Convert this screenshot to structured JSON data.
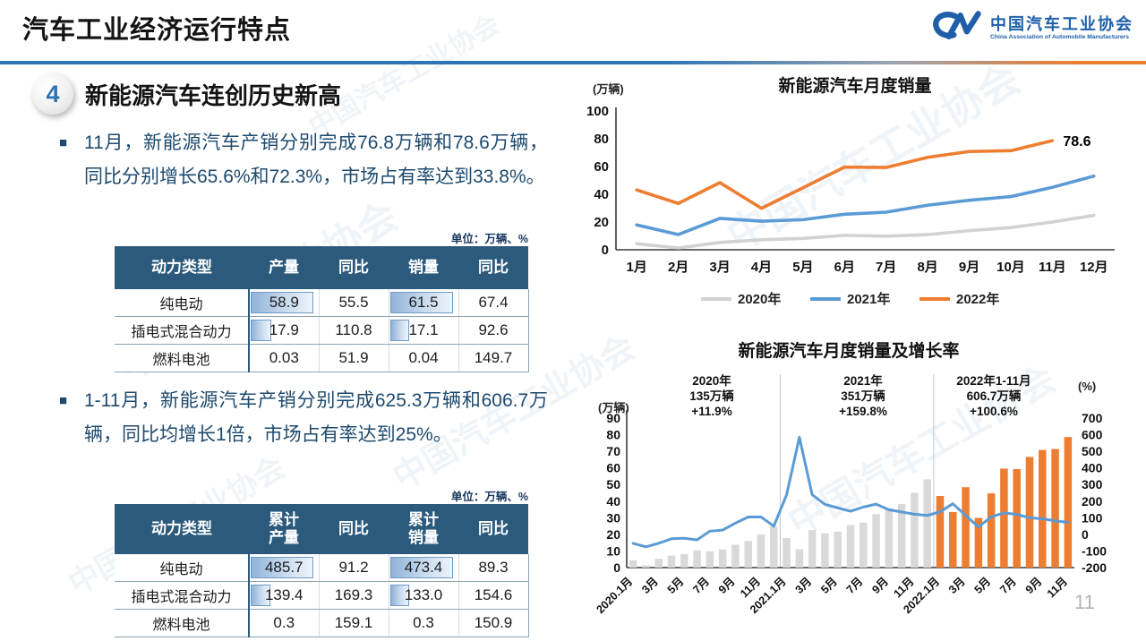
{
  "header": {
    "title": "汽车工业经济运行特点",
    "logo": {
      "mark": "CM",
      "name_cn": "中国汽车工业协会",
      "name_en": "China Association of Automobile Manufacturers"
    }
  },
  "section": {
    "number": "4",
    "heading": "新能源汽车连创历史新高"
  },
  "bullets": [
    {
      "text": "11月，新能源汽车产销分别完成76.8万辆和78.6万辆，同比分别增长65.6%和72.3%，市场占有率达到33.8%。"
    },
    {
      "text": "1-11月，新能源汽车产销分别完成625.3万辆和606.7万辆，同比均增长1倍，市场占有率达到25%。"
    }
  ],
  "tables": [
    {
      "unit_note": "单位：万辆、%",
      "headers": [
        "动力类型",
        "产量",
        "同比",
        "销量",
        "同比"
      ],
      "rows": [
        [
          "纯电动",
          "58.9",
          "55.5",
          "61.5",
          "67.4"
        ],
        [
          "插电式混合动力",
          "17.9",
          "110.8",
          "17.1",
          "92.6"
        ],
        [
          "燃料电池",
          "0.03",
          "51.9",
          "0.04",
          "149.7"
        ]
      ],
      "databar_columns": [
        1,
        3
      ]
    },
    {
      "unit_note": "单位：万辆、%",
      "headers": [
        "动力类型",
        "累计产量",
        "同比",
        "累计销量",
        "同比"
      ],
      "rows": [
        [
          "纯电动",
          "485.7",
          "91.2",
          "473.4",
          "89.3"
        ],
        [
          "插电式混合动力",
          "139.4",
          "169.3",
          "133.0",
          "154.6"
        ],
        [
          "燃料电池",
          "0.3",
          "159.1",
          "0.3",
          "150.9"
        ]
      ],
      "databar_columns": [
        1,
        3
      ]
    }
  ],
  "chart_data": [
    {
      "type": "line",
      "title": "新能源汽车月度销量",
      "unit_label": "(万辆)",
      "categories": [
        "1月",
        "2月",
        "3月",
        "4月",
        "5月",
        "6月",
        "7月",
        "8月",
        "9月",
        "10月",
        "11月",
        "12月"
      ],
      "ylim": [
        0,
        100
      ],
      "yticks": [
        0,
        20,
        40,
        60,
        80,
        100
      ],
      "grid": false,
      "legend_position": "bottom",
      "series": [
        {
          "name": "2020年",
          "color": "#d2d2d2",
          "values": [
            4.4,
            1.3,
            5.3,
            7.2,
            8.2,
            10.4,
            9.8,
            10.9,
            13.8,
            16.0,
            20.0,
            24.8
          ]
        },
        {
          "name": "2021年",
          "color": "#5b9bd5",
          "values": [
            17.9,
            11.0,
            22.6,
            20.6,
            21.7,
            25.6,
            27.1,
            32.1,
            35.7,
            38.3,
            45.0,
            53.1
          ]
        },
        {
          "name": "2022年",
          "color": "#ed7d31",
          "values": [
            43.1,
            33.4,
            48.4,
            29.9,
            44.7,
            59.6,
            59.3,
            66.6,
            70.8,
            71.4,
            78.6
          ]
        }
      ],
      "end_label": {
        "text": "78.6",
        "series_index": 2
      }
    },
    {
      "type": "bar+line",
      "title": "新能源汽车月度销量及增长率",
      "left_axis": {
        "unit": "(万辆)",
        "lim": [
          0,
          90
        ],
        "ticks": [
          0,
          10,
          20,
          30,
          40,
          50,
          60,
          70,
          80,
          90
        ]
      },
      "right_axis": {
        "unit": "(%)",
        "lim": [
          -200,
          700
        ],
        "ticks": [
          700,
          600,
          500,
          400,
          300,
          200,
          100,
          0,
          -100,
          -200
        ]
      },
      "x_tick_labels": [
        "2020.1月",
        "3月",
        "5月",
        "7月",
        "9月",
        "11月",
        "2021.1月",
        "3月",
        "5月",
        "7月",
        "9月",
        "11月",
        "2022.1月",
        "3月",
        "5月",
        "7月",
        "9月",
        "11月"
      ],
      "bars": {
        "values": [
          4.4,
          1.3,
          5.3,
          7.2,
          8.2,
          10.4,
          9.8,
          10.9,
          13.8,
          16.0,
          20.0,
          24.8,
          17.9,
          11.0,
          22.6,
          20.6,
          21.7,
          25.6,
          27.1,
          32.1,
          35.7,
          38.3,
          45.0,
          53.1,
          43.1,
          33.4,
          48.4,
          29.9,
          44.7,
          59.6,
          59.3,
          66.6,
          70.8,
          71.4,
          78.6
        ],
        "split_index": 24,
        "color_2020_2021": "#d9d9d9",
        "color_2022": "#ed7d31"
      },
      "line": {
        "color": "#5b9bd5",
        "axis": "right",
        "values": [
          -54.4,
          -75.2,
          -53.3,
          -26.5,
          -23.5,
          -33.1,
          19.3,
          25.8,
          67.7,
          104.5,
          104.9,
          49.5,
          238.5,
          584.7,
          238.9,
          180.3,
          159.7,
          139.3,
          164.4,
          181.9,
          148.4,
          134.9,
          121.1,
          113.9,
          135.8,
          184.3,
          114.1,
          44.6,
          105.2,
          129.2,
          120.0,
          100.0,
          93.9,
          81.7,
          72.3
        ]
      },
      "annotations": [
        {
          "lines": [
            "2020年",
            "135万辆",
            "+11.9%"
          ]
        },
        {
          "lines": [
            "2021年",
            "351万辆",
            "+159.8%"
          ]
        },
        {
          "lines": [
            "2022年1-11月",
            "606.7万辆",
            "+100.6%"
          ]
        }
      ],
      "year_dividers_at_slots": [
        12,
        24
      ]
    }
  ],
  "page_number": "11",
  "colors": {
    "accent_blue": "#2e74b5",
    "accent_orange": "#ed7d31",
    "line_blue": "#5b9bd5",
    "line_gray": "#d2d2d2",
    "bar_gray": "#d9d9d9",
    "table_header_bg": "#2b5a7c",
    "body_text": "#1d4a6e",
    "logo_blue": "#1f5fa9"
  }
}
